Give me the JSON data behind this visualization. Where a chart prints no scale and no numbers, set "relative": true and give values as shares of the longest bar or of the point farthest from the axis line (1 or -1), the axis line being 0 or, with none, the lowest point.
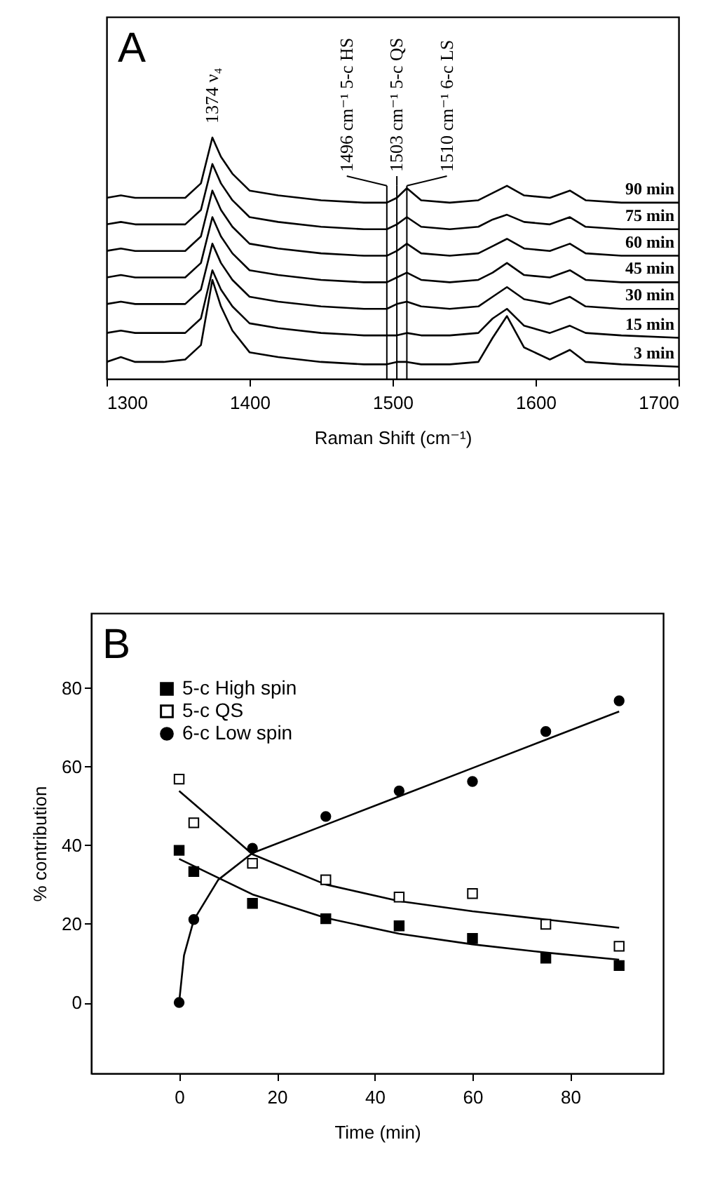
{
  "chart_data": [
    {
      "type": "line",
      "relative": true,
      "xlabel": "Raman Shift (cm⁻¹)",
      "xlim": [
        1300,
        1700
      ],
      "xticks": [
        1300,
        1400,
        1500,
        1600,
        1700
      ],
      "tick_labels": "x",
      "x": [
        1300,
        1310,
        1320,
        1340,
        1355,
        1366,
        1374,
        1380,
        1388,
        1400,
        1420,
        1450,
        1480,
        1496,
        1503,
        1510,
        1520,
        1540,
        1560,
        1570,
        1580,
        1592,
        1610,
        1624,
        1635,
        1660,
        1700
      ],
      "series": [
        {
          "name": "90 min",
          "color": "#000000",
          "values": [
            0.75,
            0.76,
            0.75,
            0.75,
            0.75,
            0.81,
            1.0,
            0.92,
            0.85,
            0.78,
            0.76,
            0.74,
            0.73,
            0.73,
            0.75,
            0.79,
            0.74,
            0.73,
            0.74,
            0.77,
            0.8,
            0.76,
            0.75,
            0.78,
            0.74,
            0.73,
            0.73
          ]
        },
        {
          "name": "75 min",
          "color": "#000000",
          "values": [
            0.64,
            0.65,
            0.64,
            0.64,
            0.64,
            0.7,
            0.89,
            0.81,
            0.74,
            0.67,
            0.65,
            0.63,
            0.62,
            0.62,
            0.64,
            0.67,
            0.63,
            0.62,
            0.63,
            0.66,
            0.68,
            0.65,
            0.64,
            0.67,
            0.63,
            0.62,
            0.62
          ]
        },
        {
          "name": "60 min",
          "color": "#000000",
          "values": [
            0.53,
            0.54,
            0.53,
            0.53,
            0.53,
            0.59,
            0.78,
            0.7,
            0.63,
            0.56,
            0.54,
            0.52,
            0.51,
            0.51,
            0.53,
            0.56,
            0.52,
            0.51,
            0.52,
            0.55,
            0.58,
            0.54,
            0.53,
            0.56,
            0.52,
            0.51,
            0.51
          ]
        },
        {
          "name": "45 min",
          "color": "#000000",
          "values": [
            0.42,
            0.43,
            0.42,
            0.42,
            0.42,
            0.48,
            0.67,
            0.59,
            0.52,
            0.45,
            0.43,
            0.41,
            0.4,
            0.4,
            0.42,
            0.44,
            0.41,
            0.4,
            0.41,
            0.44,
            0.48,
            0.43,
            0.42,
            0.45,
            0.41,
            0.4,
            0.4
          ]
        },
        {
          "name": "30 min",
          "color": "#000000",
          "values": [
            0.31,
            0.32,
            0.31,
            0.31,
            0.31,
            0.37,
            0.56,
            0.48,
            0.41,
            0.34,
            0.32,
            0.3,
            0.29,
            0.29,
            0.31,
            0.32,
            0.3,
            0.29,
            0.3,
            0.34,
            0.38,
            0.33,
            0.31,
            0.34,
            0.3,
            0.29,
            0.29
          ]
        },
        {
          "name": "15 min",
          "color": "#000000",
          "values": [
            0.19,
            0.2,
            0.19,
            0.19,
            0.19,
            0.25,
            0.45,
            0.37,
            0.3,
            0.23,
            0.21,
            0.19,
            0.18,
            0.18,
            0.18,
            0.19,
            0.18,
            0.18,
            0.19,
            0.25,
            0.29,
            0.22,
            0.19,
            0.22,
            0.19,
            0.18,
            0.17
          ]
        },
        {
          "name": "3 min",
          "color": "#000000",
          "values": [
            0.07,
            0.09,
            0.07,
            0.07,
            0.08,
            0.14,
            0.41,
            0.3,
            0.2,
            0.11,
            0.09,
            0.07,
            0.06,
            0.06,
            0.07,
            0.07,
            0.06,
            0.06,
            0.07,
            0.17,
            0.26,
            0.13,
            0.08,
            0.12,
            0.07,
            0.06,
            0.05
          ]
        }
      ],
      "ref_lines": [
        {
          "axis": "x",
          "value": 1496,
          "label": "1496 cm⁻¹ 5-c HS"
        },
        {
          "axis": "x",
          "value": 1503,
          "label": "1503 cm⁻¹ 5-c QS"
        },
        {
          "axis": "x",
          "value": 1510,
          "label": "1510 cm⁻¹ 6-c LS"
        }
      ],
      "annotations": [
        "A",
        {
          "text": "1374 ν₄",
          "x": 1374,
          "y": 1.0
        }
      ]
    },
    {
      "type": "scatter",
      "xlabel": "Time (min)",
      "ylabel": "% contribution",
      "xlim": [
        -18,
        99
      ],
      "ylim": [
        -18,
        99
      ],
      "xticks": [
        0,
        20,
        40,
        60,
        80
      ],
      "yticks": [
        0,
        20,
        40,
        60,
        80
      ],
      "legend": "top left",
      "series": [
        {
          "name": "5-c High spin",
          "type": "scatter",
          "marker": "square",
          "color": "#000000",
          "x": [
            0,
            3,
            15,
            30,
            45,
            60,
            75,
            90
          ],
          "values": [
            38.7,
            33.3,
            25.2,
            21.3,
            19.5,
            16.3,
            11.3,
            9.4
          ]
        },
        {
          "name": "5-c QS",
          "type": "scatter",
          "marker": "square",
          "color": "#ffffff",
          "x": [
            0,
            3,
            15,
            30,
            45,
            60,
            75,
            90
          ],
          "values": [
            56.8,
            45.7,
            35.4,
            31.2,
            26.8,
            27.7,
            19.9,
            14.3
          ]
        },
        {
          "name": "6-c Low spin",
          "type": "scatter",
          "marker": "circle",
          "color": "#000000",
          "x": [
            0,
            3,
            15,
            30,
            45,
            60,
            75,
            90
          ],
          "values": [
            0,
            21.1,
            39.2,
            47.3,
            53.8,
            56.2,
            68.9,
            76.7
          ]
        },
        {
          "type": "line",
          "color": "#000000",
          "x": [
            0,
            15,
            30,
            45,
            60,
            75,
            90
          ],
          "values": [
            36.5,
            27.5,
            21.5,
            17.5,
            14.8,
            12.7,
            10.9
          ]
        },
        {
          "type": "line",
          "color": "#000000",
          "x": [
            0,
            10,
            15,
            30,
            45,
            60,
            75,
            90
          ],
          "values": [
            53.8,
            43.1,
            37.7,
            30,
            25.8,
            23.2,
            21.1,
            19
          ]
        },
        {
          "type": "line",
          "color": "#000000",
          "x": [
            0,
            1,
            3,
            8,
            15,
            30,
            45,
            60,
            75,
            90
          ],
          "values": [
            0,
            12,
            21,
            31.2,
            38,
            45.2,
            52.4,
            59.6,
            66.8,
            74
          ]
        }
      ],
      "annotations": [
        "B"
      ]
    }
  ]
}
